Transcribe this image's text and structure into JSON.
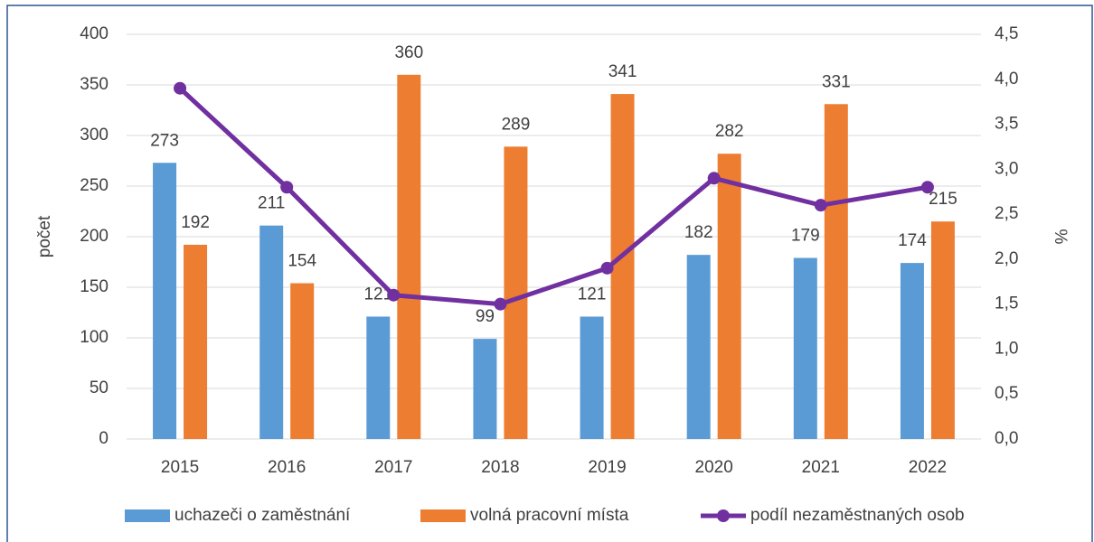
{
  "chart_data": {
    "type": "bar",
    "categories": [
      "2015",
      "2016",
      "2017",
      "2018",
      "2019",
      "2020",
      "2021",
      "2022"
    ],
    "series": [
      {
        "name": "uchazeči o zaměstnání",
        "color": "#5b9bd5",
        "type": "bar",
        "values": [
          273,
          211,
          121,
          99,
          121,
          182,
          179,
          174
        ]
      },
      {
        "name": "volná pracovní místa",
        "color": "#ed7d31",
        "type": "bar",
        "values": [
          192,
          154,
          360,
          289,
          341,
          282,
          331,
          215
        ]
      },
      {
        "name": "podíl nezaměstnaných osob",
        "color": "#7030a0",
        "type": "line",
        "axis": "y2",
        "values": [
          3.9,
          2.8,
          1.6,
          1.5,
          1.9,
          2.9,
          2.6,
          2.8
        ]
      }
    ],
    "ylabel": "počet",
    "y2label": "%",
    "ylim": [
      0,
      400
    ],
    "yticks": [
      0,
      50,
      100,
      150,
      200,
      250,
      300,
      350,
      400
    ],
    "y2lim": [
      0,
      4.5
    ],
    "y2ticks": [
      {
        "value": 0,
        "label": "0,0"
      },
      {
        "value": 0.5,
        "label": "0,5"
      },
      {
        "value": 1,
        "label": "1,0"
      },
      {
        "value": 1.5,
        "label": "1,5"
      },
      {
        "value": 2,
        "label": "2,0"
      },
      {
        "value": 2.5,
        "label": "2,5"
      },
      {
        "value": 3,
        "label": "3,0"
      },
      {
        "value": 3.5,
        "label": "3,5"
      },
      {
        "value": 4,
        "label": "4,0"
      },
      {
        "value": 4.5,
        "label": "4,5"
      }
    ],
    "grid": true,
    "legend": "bottom"
  }
}
